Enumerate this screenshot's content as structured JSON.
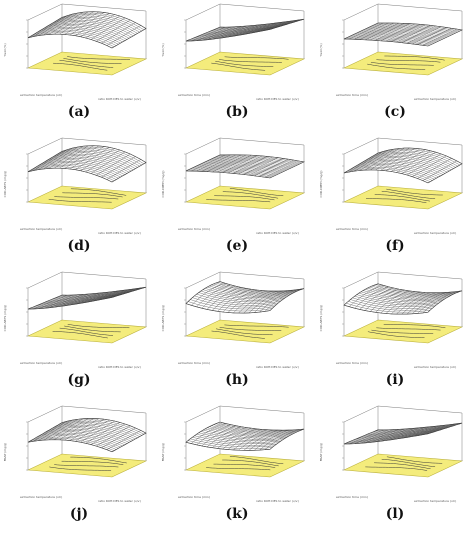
{
  "figure": {
    "panels": [
      {
        "label": "(a)",
        "ylabel": "Yield (%)",
        "xlabel": "extraction temperature (oC)",
        "zlabel": "ratio KOH:DES to water (v/v)",
        "surface": "ridge",
        "peak": 0.55
      },
      {
        "label": "(b)",
        "ylabel": "Yield (%)",
        "xlabel": "extraction time (min)",
        "zlabel": "ratio KOH:DES to water (v/v)",
        "surface": "rise_right",
        "peak": 0.6
      },
      {
        "label": "(c)",
        "ylabel": "Yield (%)",
        "xlabel": "extraction time (min)",
        "zlabel": "extraction temperature (oC)",
        "surface": "flat",
        "peak": 0.3
      },
      {
        "label": "(d)",
        "ylabel": "COD-ABTS (mg/g)",
        "xlabel": "extraction temperature (oC)",
        "zlabel": "ratio KOH:DES to water (v/v)",
        "surface": "ridge",
        "peak": 0.55
      },
      {
        "label": "(e)",
        "ylabel": "COD-DPPH (mg/g)",
        "xlabel": "extraction time (min)",
        "zlabel": "ratio KOH:DES to water (v/v)",
        "surface": "flat",
        "peak": 0.35
      },
      {
        "label": "(f)",
        "ylabel": "COD-DPPH (mg/g)",
        "xlabel": "extraction time (min)",
        "zlabel": "extraction temperature (oC)",
        "surface": "ridge",
        "peak": 0.5
      },
      {
        "label": "(g)",
        "ylabel": "COD-ABTS (mg/g)",
        "xlabel": "extraction temperature (oC)",
        "zlabel": "ratio KOH:DES to water (v/v)",
        "surface": "rise_right",
        "peak": 0.6
      },
      {
        "label": "(h)",
        "ylabel": "COD-ABTS (mg/g)",
        "xlabel": "extraction time (min)",
        "zlabel": "ratio KOH:DES to water (v/v)",
        "surface": "saddle",
        "peak": 0.5
      },
      {
        "label": "(i)",
        "ylabel": "COD-ABTS (mg/g)",
        "xlabel": "extraction time (min)",
        "zlabel": "extraction temperature (oC)",
        "surface": "saddle",
        "peak": 0.45
      },
      {
        "label": "(j)",
        "ylabel": "FRAP (mg/g)",
        "xlabel": "extraction temperature (oC)",
        "zlabel": "ratio KOH:DES to water (v/v)",
        "surface": "ridge",
        "peak": 0.45
      },
      {
        "label": "(k)",
        "ylabel": "FRAP (mg/g)",
        "xlabel": "extraction time (min)",
        "zlabel": "ratio KOH:DES to water (v/v)",
        "surface": "saddle",
        "peak": 0.35
      },
      {
        "label": "(l)",
        "ylabel": "FRAP (mg/g)",
        "xlabel": "extraction time (min)",
        "zlabel": "extraction temperature (oC)",
        "surface": "rise_right",
        "peak": 0.55
      }
    ],
    "colors": {
      "floor": "#f4ec7c",
      "floor_edge": "#b8ae3a",
      "mesh": "#3d3d3d",
      "surface": "#ffffff",
      "contour": "#3a3a3a",
      "box": "#7a7a7a"
    }
  }
}
